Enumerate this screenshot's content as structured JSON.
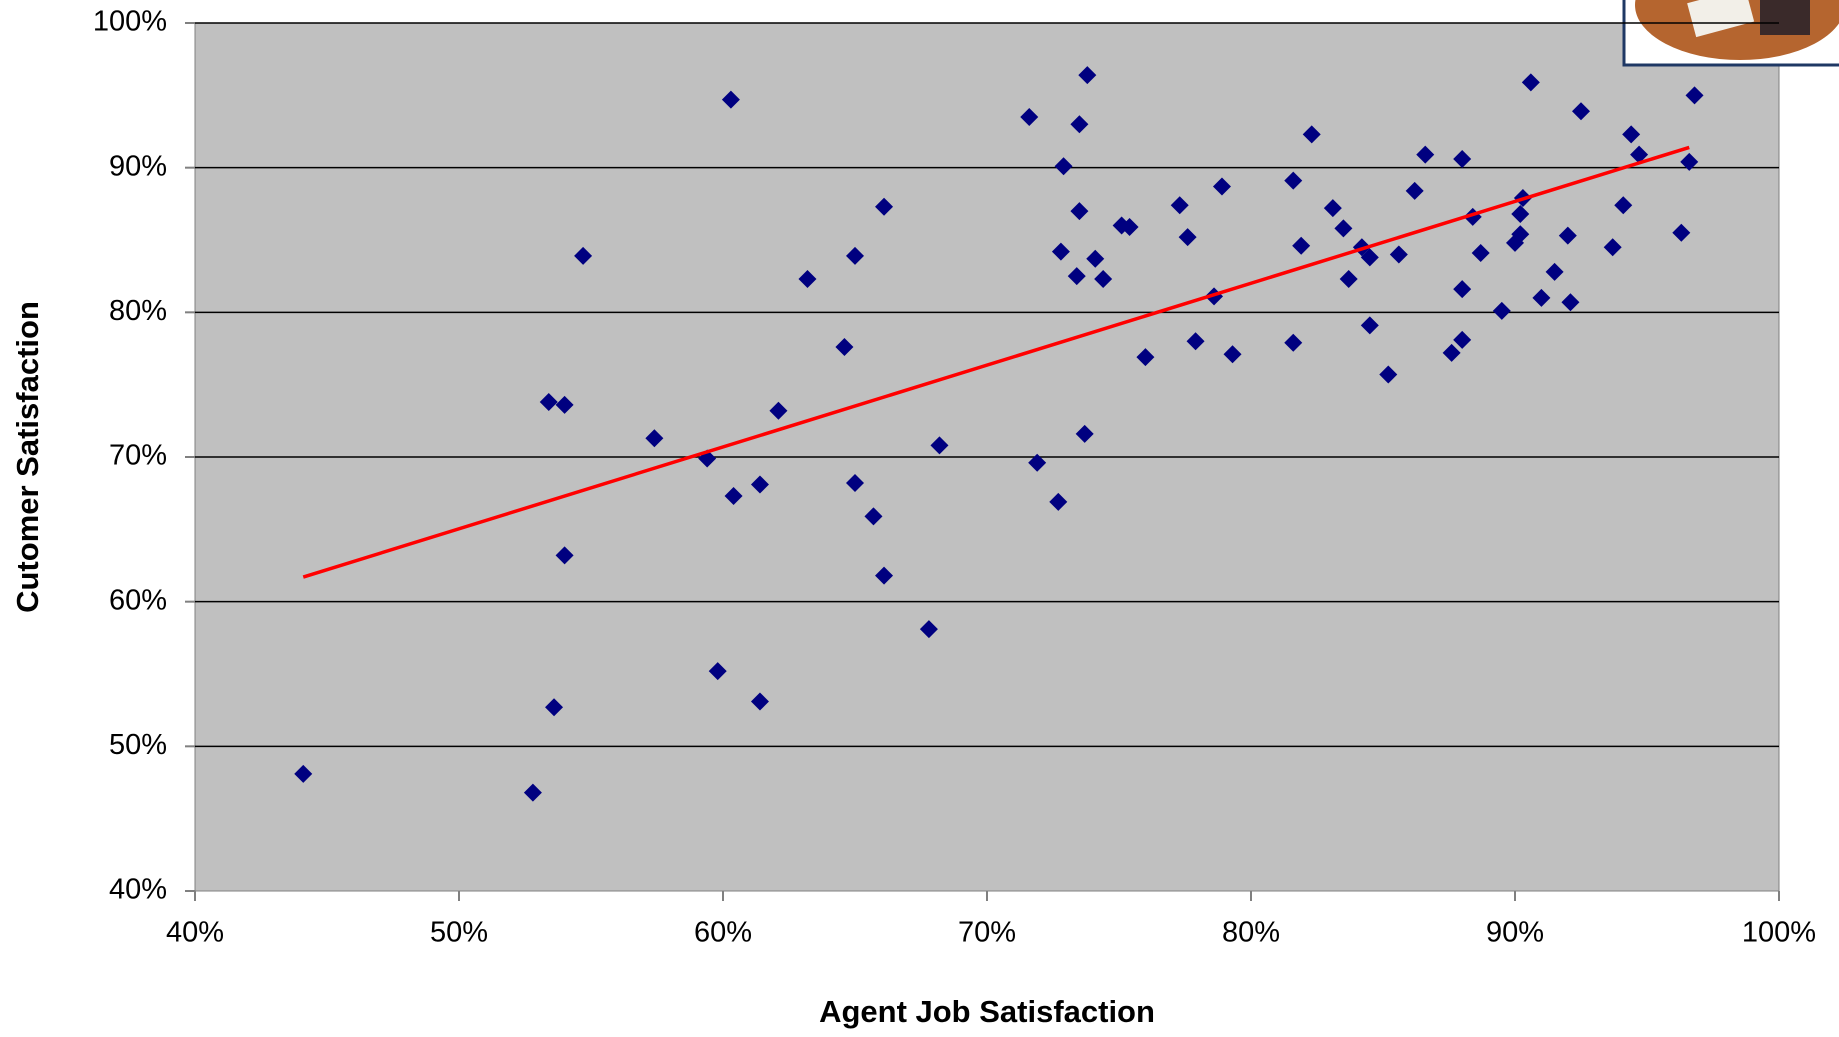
{
  "chart_data": {
    "type": "scatter",
    "x_label": "Agent Job Satisfaction",
    "y_label": "Cutomer Satisfaction",
    "series": [
      {
        "color": "#000080",
        "x": [
          44.1,
          52.8,
          53.6,
          53.4,
          54.0,
          54.0,
          54.7,
          57.4,
          59.4,
          60.3,
          60.4,
          59.8,
          61.4,
          61.4,
          62.1,
          63.2,
          64.6,
          65.0,
          65.0,
          65.7,
          66.1,
          66.1,
          67.8,
          68.2,
          71.6,
          71.9,
          72.7,
          72.8,
          72.9,
          73.5,
          73.5,
          73.4,
          73.7,
          73.8,
          74.1,
          74.4,
          75.1,
          75.4,
          76.0,
          77.3,
          77.6,
          77.9,
          78.6,
          78.9,
          79.3,
          81.6,
          81.6,
          81.9,
          82.3,
          83.1,
          83.5,
          83.7,
          84.2,
          84.5,
          84.5,
          85.2,
          85.6,
          86.2,
          86.6,
          87.6,
          88.0,
          88.0,
          88.0,
          88.4,
          88.7,
          89.5,
          90.0,
          90.2,
          90.2,
          90.3,
          90.6,
          91.0,
          91.5,
          92.0,
          92.1,
          92.5,
          93.7,
          94.1,
          94.4,
          94.7,
          96.3,
          96.6,
          96.8
        ],
        "values": [
          48.1,
          46.8,
          52.7,
          73.8,
          73.6,
          63.2,
          83.9,
          71.3,
          69.9,
          94.7,
          67.3,
          55.2,
          68.1,
          53.1,
          73.2,
          82.3,
          77.6,
          83.9,
          68.2,
          65.9,
          87.3,
          61.8,
          58.1,
          70.8,
          93.5,
          69.6,
          66.9,
          84.2,
          90.1,
          93.0,
          87.0,
          82.5,
          71.6,
          96.4,
          83.7,
          82.3,
          86.0,
          85.9,
          76.9,
          87.4,
          85.2,
          78.0,
          81.1,
          88.7,
          77.1,
          77.9,
          89.1,
          84.6,
          92.3,
          87.2,
          85.8,
          82.3,
          84.5,
          83.8,
          79.1,
          75.7,
          84.0,
          88.4,
          90.9,
          77.2,
          81.6,
          90.6,
          78.1,
          86.6,
          84.1,
          80.1,
          84.8,
          85.4,
          86.8,
          87.9,
          95.9,
          81.0,
          82.8,
          85.3,
          80.7,
          93.9,
          84.5,
          87.4,
          92.3,
          90.9,
          85.5,
          90.4,
          95.0
        ]
      }
    ],
    "trendline": {
      "color": "#ff0000",
      "x": [
        44.1,
        96.6
      ],
      "values": [
        61.7,
        91.4
      ]
    },
    "xlim": [
      40,
      100
    ],
    "xticks": [
      {
        "value": 40,
        "label": "40%"
      },
      {
        "value": 50,
        "label": "50%"
      },
      {
        "value": 60,
        "label": "60%"
      },
      {
        "value": 70,
        "label": "70%"
      },
      {
        "value": 80,
        "label": "80%"
      },
      {
        "value": 90,
        "label": "90%"
      },
      {
        "value": 100,
        "label": "100%"
      }
    ],
    "ylim": [
      40,
      100
    ],
    "yticks": [
      {
        "value": 40,
        "label": "40%"
      },
      {
        "value": 50,
        "label": "50%"
      },
      {
        "value": 60,
        "label": "60%"
      },
      {
        "value": 70,
        "label": "70%"
      },
      {
        "value": 80,
        "label": "80%"
      },
      {
        "value": 90,
        "label": "90%"
      },
      {
        "value": 100,
        "label": "100%"
      }
    ],
    "grid": true
  }
}
